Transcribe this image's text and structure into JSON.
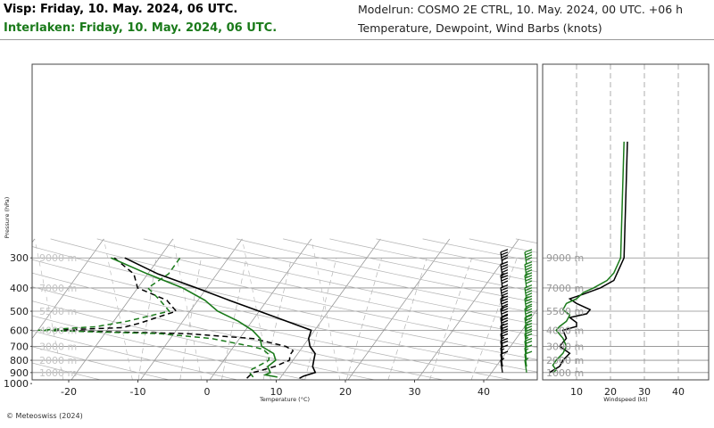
{
  "header": {
    "station1": "Visp: Friday, 10. May. 2024, 06 UTC.",
    "station2": "Interlaken: Friday, 10. May. 2024, 06 UTC.",
    "model": "Modelrun: COSMO 2E CTRL, 10. May. 2024, 00 UTC. +06 h",
    "subtitle": "Temperature, Dewpoint, Wind Barbs (knots)"
  },
  "footer": {
    "copyright": "© Meteoswiss (2024)"
  },
  "colors": {
    "station1": "#000000",
    "station2": "#1a7a1a",
    "grid": "#8c8c8c",
    "guide": "#b4b4b4"
  },
  "chart_data": [
    {
      "type": "line",
      "kind": "skew-T log-P",
      "xlabel": "Temperature (°C)",
      "ylabel": "Pressure (hPa)",
      "xticks": [
        "-20",
        "-10",
        "0",
        "10",
        "20",
        "30",
        "40"
      ],
      "yticks": [
        "300",
        "400",
        "500",
        "600",
        "700",
        "800",
        "900",
        "1000"
      ],
      "altitude_labels": [
        "1000 m",
        "2000 m",
        "3000 m",
        "4000 m",
        "5500 m",
        "7000 m",
        "9000 m"
      ],
      "series": [
        {
          "name": "Visp temperature",
          "color": "#000000",
          "dash": false,
          "points": [
            [
              950,
              12.8
            ],
            [
              930,
              13.2
            ],
            [
              900,
              14.5
            ],
            [
              850,
              13.5
            ],
            [
              800,
              13.0
            ],
            [
              750,
              12.5
            ],
            [
              700,
              11.0
            ],
            [
              650,
              10.0
            ],
            [
              600,
              9.5
            ],
            [
              550,
              5.0
            ],
            [
              500,
              0.0
            ],
            [
              450,
              -5.5
            ],
            [
              400,
              -11.5
            ],
            [
              350,
              -18.5
            ],
            [
              300,
              -25.0
            ]
          ]
        },
        {
          "name": "Visp dewpoint",
          "color": "#000000",
          "dash": true,
          "points": [
            [
              950,
              5.2
            ],
            [
              930,
              5.3
            ],
            [
              900,
              5.5
            ],
            [
              870,
              7.0
            ],
            [
              850,
              8.0
            ],
            [
              800,
              9.5
            ],
            [
              760,
              9.0
            ],
            [
              730,
              9.0
            ],
            [
              700,
              7.5
            ],
            [
              650,
              2.0
            ],
            [
              620,
              -8.0
            ],
            [
              600,
              -28.0
            ],
            [
              585,
              -18.0
            ],
            [
              560,
              -16.0
            ],
            [
              500,
              -12.0
            ],
            [
              450,
              -14.5
            ],
            [
              400,
              -20.0
            ],
            [
              350,
              -22.0
            ],
            [
              300,
              -26.5
            ]
          ]
        },
        {
          "name": "Interlaken temperature",
          "color": "#1a7a1a",
          "dash": false,
          "points": [
            [
              940,
              9.5
            ],
            [
              920,
              7.5
            ],
            [
              900,
              8.0
            ],
            [
              850,
              7.0
            ],
            [
              800,
              7.5
            ],
            [
              750,
              6.5
            ],
            [
              700,
              4.0
            ],
            [
              650,
              3.0
            ],
            [
              600,
              1.0
            ],
            [
              550,
              -2.0
            ],
            [
              500,
              -6.0
            ],
            [
              450,
              -9.0
            ],
            [
              400,
              -13.5
            ],
            [
              350,
              -20.0
            ],
            [
              300,
              -27.0
            ]
          ]
        },
        {
          "name": "Interlaken dewpoint",
          "color": "#1a7a1a",
          "dash": true,
          "points": [
            [
              940,
              6.0
            ],
            [
              900,
              5.0
            ],
            [
              870,
              5.0
            ],
            [
              850,
              5.5
            ],
            [
              800,
              6.5
            ],
            [
              760,
              6.0
            ],
            [
              720,
              4.5
            ],
            [
              700,
              2.5
            ],
            [
              650,
              -4.0
            ],
            [
              620,
              -12.0
            ],
            [
              600,
              -30.0
            ],
            [
              580,
              -22.0
            ],
            [
              550,
              -18.0
            ],
            [
              500,
              -13.0
            ],
            [
              450,
              -15.5
            ],
            [
              400,
              -18.5
            ],
            [
              350,
              -17.0
            ],
            [
              300,
              -17.0
            ]
          ]
        }
      ],
      "wind_barbs": [
        {
          "name": "Visp wind",
          "color": "#000000",
          "levels": [
            [
              320,
              60
            ],
            [
              360,
              55
            ],
            [
              400,
              50
            ],
            [
              450,
              45
            ],
            [
              500,
              45
            ],
            [
              550,
              40
            ],
            [
              600,
              35
            ],
            [
              650,
              30
            ],
            [
              700,
              25
            ],
            [
              750,
              20
            ],
            [
              800,
              15
            ],
            [
              850,
              10
            ],
            [
              900,
              5
            ]
          ]
        },
        {
          "name": "Interlaken wind",
          "color": "#1a7a1a",
          "levels": [
            [
              320,
              60
            ],
            [
              360,
              55
            ],
            [
              400,
              50
            ],
            [
              450,
              45
            ],
            [
              500,
              45
            ],
            [
              550,
              40
            ],
            [
              600,
              35
            ],
            [
              650,
              30
            ],
            [
              700,
              25
            ],
            [
              750,
              20
            ],
            [
              800,
              15
            ],
            [
              850,
              10
            ],
            [
              900,
              5
            ]
          ]
        }
      ]
    },
    {
      "type": "line",
      "kind": "wind speed profile",
      "xlabel": "Windspeed (kt)",
      "xticks": [
        "10",
        "20",
        "30",
        "40"
      ],
      "altitude_labels": [
        "1000 m",
        "2000 m",
        "3000 m",
        "4000 m",
        "5500 m",
        "7000 m",
        "9000 m"
      ],
      "series": [
        {
          "name": "Visp wind speed",
          "color": "#000000",
          "points": [
            [
              1000,
              2
            ],
            [
              1500,
              5
            ],
            [
              2000,
              6
            ],
            [
              2500,
              8
            ],
            [
              3000,
              5
            ],
            [
              3500,
              7
            ],
            [
              4000,
              6
            ],
            [
              4300,
              10
            ],
            [
              4600,
              10
            ],
            [
              5000,
              8
            ],
            [
              5300,
              13
            ],
            [
              5600,
              14
            ],
            [
              6000,
              10
            ],
            [
              6300,
              8
            ],
            [
              6600,
              12
            ],
            [
              7000,
              17
            ],
            [
              7500,
              21
            ],
            [
              8000,
              22
            ],
            [
              8500,
              23
            ],
            [
              9000,
              24
            ],
            [
              9300,
              25
            ]
          ]
        },
        {
          "name": "Interlaken wind speed",
          "color": "#1a7a1a",
          "points": [
            [
              1000,
              3
            ],
            [
              1200,
              4
            ],
            [
              1600,
              3
            ],
            [
              2000,
              4
            ],
            [
              2500,
              6
            ],
            [
              3000,
              7
            ],
            [
              3500,
              6
            ],
            [
              4000,
              4
            ],
            [
              4300,
              5
            ],
            [
              4700,
              7
            ],
            [
              5200,
              8
            ],
            [
              5600,
              6
            ],
            [
              6000,
              7
            ],
            [
              6300,
              10
            ],
            [
              6700,
              12
            ],
            [
              7000,
              15
            ],
            [
              7500,
              19
            ],
            [
              8000,
              21
            ],
            [
              8500,
              22
            ],
            [
              9000,
              23
            ],
            [
              9300,
              24
            ]
          ]
        }
      ]
    }
  ]
}
